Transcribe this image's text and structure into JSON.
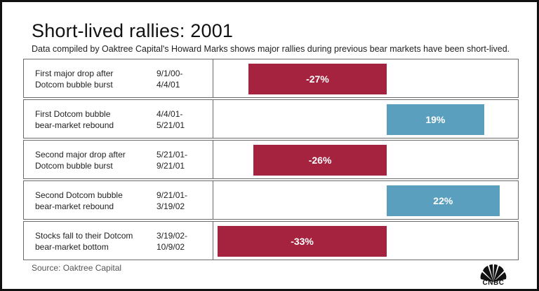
{
  "title": "Short-lived rallies: 2001",
  "subtitle": "Data compiled by Oaktree Capital's Howard Marks shows major rallies during previous bear markets have been short-lived.",
  "source": "Source: Oaktree Capital",
  "logo_text": "CNBC",
  "colors": {
    "negative": "#a6233f",
    "positive": "#5b9fbe"
  },
  "chart_data": {
    "type": "bar",
    "orientation": "horizontal",
    "title": "Short-lived rallies: 2001",
    "categories": [
      "First major drop after Dotcom bubble burst",
      "First Dotcom bubble bear-market rebound",
      "Second major drop after Dotcom bubble burst",
      "Second Dotcom bubble bear-market rebound",
      "Stocks fall to their Dotcom bear-market bottom"
    ],
    "values": [
      -27,
      19,
      -26,
      22,
      -33
    ],
    "rows": [
      {
        "desc1": "First major drop after",
        "desc2": "Dotcom bubble burst",
        "date1": "9/1/00-",
        "date2": "4/4/01",
        "value": -27,
        "label": "-27%"
      },
      {
        "desc1": "First Dotcom bubble",
        "desc2": "bear-market rebound",
        "date1": "4/4/01-",
        "date2": "5/21/01",
        "value": 19,
        "label": "19%"
      },
      {
        "desc1": "Second major drop after",
        "desc2": "Dotcom bubble burst",
        "date1": "5/21/01-",
        "date2": "9/21/01",
        "value": -26,
        "label": "-26%"
      },
      {
        "desc1": "Second Dotcom bubble",
        "desc2": "bear-market rebound",
        "date1": "9/21/01-",
        "date2": "3/19/02",
        "value": 22,
        "label": "22%"
      },
      {
        "desc1": "Stocks fall to their Dotcom",
        "desc2": "bear-market bottom",
        "date1": "3/19/02-",
        "date2": "10/9/02",
        "value": -33,
        "label": "-33%"
      }
    ]
  }
}
